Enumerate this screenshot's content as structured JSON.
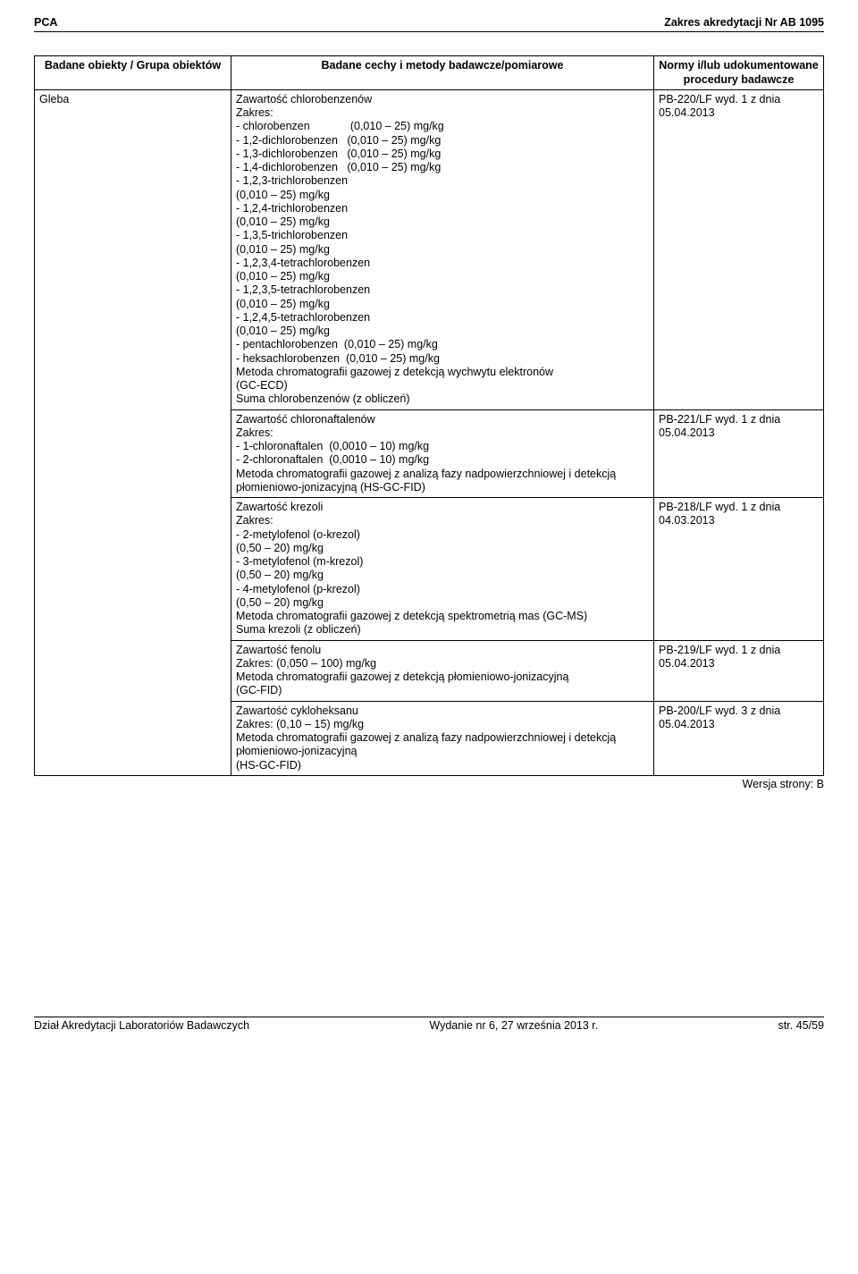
{
  "header": {
    "left": "PCA",
    "right": "Zakres akredytacji Nr AB 1095"
  },
  "table": {
    "columns": [
      "Badane obiekty / Grupa obiektów",
      "Badane cechy i metody badawcze/pomiarowe",
      "Normy i/lub udokumentowane procedury badawcze"
    ],
    "body_col1": "Gleba",
    "rows": [
      {
        "mid": [
          "Zawartość chlorobenzenów",
          "Zakres:",
          "- chlorobenzen             (0,010 – 25) mg/kg",
          "- 1,2-dichlorobenzen   (0,010 – 25) mg/kg",
          "- 1,3-dichlorobenzen   (0,010 – 25) mg/kg",
          "- 1,4-dichlorobenzen   (0,010 – 25) mg/kg",
          "- 1,2,3-trichlorobenzen",
          "(0,010 – 25) mg/kg",
          "- 1,2,4-trichlorobenzen",
          "(0,010 – 25) mg/kg",
          "- 1,3,5-trichlorobenzen",
          "(0,010 – 25) mg/kg",
          "- 1,2,3,4-tetrachlorobenzen",
          "(0,010 – 25) mg/kg",
          "- 1,2,3,5-tetrachlorobenzen",
          "(0,010 – 25) mg/kg",
          "- 1,2,4,5-tetrachlorobenzen",
          "(0,010 – 25) mg/kg",
          "- pentachlorobenzen  (0,010 – 25) mg/kg",
          "- heksachlorobenzen  (0,010 – 25) mg/kg",
          "Metoda chromatografii gazowej z detekcją wychwytu elektronów",
          "(GC-ECD)",
          "Suma chlorobenzenów (z obliczeń)"
        ],
        "right": [
          "PB-220/LF wyd. 1 z dnia 05.04.2013"
        ]
      },
      {
        "mid": [
          "Zawartość chloronaftalenów",
          "Zakres:",
          "- 1-chloronaftalen  (0,0010 – 10) mg/kg",
          "- 2-chloronaftalen  (0,0010 – 10) mg/kg",
          "Metoda chromatografii gazowej z analizą fazy nadpowierzchniowej i detekcją płomieniowo-jonizacyjną (HS-GC-FID)"
        ],
        "right": [
          "PB-221/LF wyd. 1 z dnia 05.04.2013"
        ]
      },
      {
        "mid": [
          "Zawartość krezoli",
          "Zakres:",
          "- 2-metylofenol (o-krezol)",
          "(0,50 – 20) mg/kg",
          "- 3-metylofenol (m-krezol)",
          "(0,50 – 20) mg/kg",
          "- 4-metylofenol (p-krezol)",
          "(0,50 – 20) mg/kg",
          "Metoda chromatografii gazowej z detekcją spektrometrią mas (GC-MS)",
          "Suma krezoli (z obliczeń)"
        ],
        "right": [
          "PB-218/LF wyd. 1 z dnia 04.03.2013"
        ]
      },
      {
        "mid": [
          "Zawartość fenolu",
          "Zakres: (0,050 – 100) mg/kg",
          "Metoda chromatografii gazowej z detekcją płomieniowo-jonizacyjną",
          "(GC-FID)"
        ],
        "right": [
          "PB-219/LF wyd. 1 z dnia 05.04.2013"
        ]
      },
      {
        "mid": [
          "Zawartość cykloheksanu",
          "Zakres: (0,10 – 15) mg/kg",
          "Metoda chromatografii gazowej z analizą fazy nadpowierzchniowej i detekcją płomieniowo-jonizacyjną",
          "(HS-GC-FID)"
        ],
        "right": [
          "PB-200/LF wyd. 3 z dnia 05.04.2013"
        ]
      }
    ],
    "version_label": "Wersja strony: B"
  },
  "footer": {
    "left": "Dział Akredytacji Laboratoriów Badawczych",
    "center": "Wydanie nr 6, 27 września 2013 r.",
    "right": "str. 45/59"
  }
}
